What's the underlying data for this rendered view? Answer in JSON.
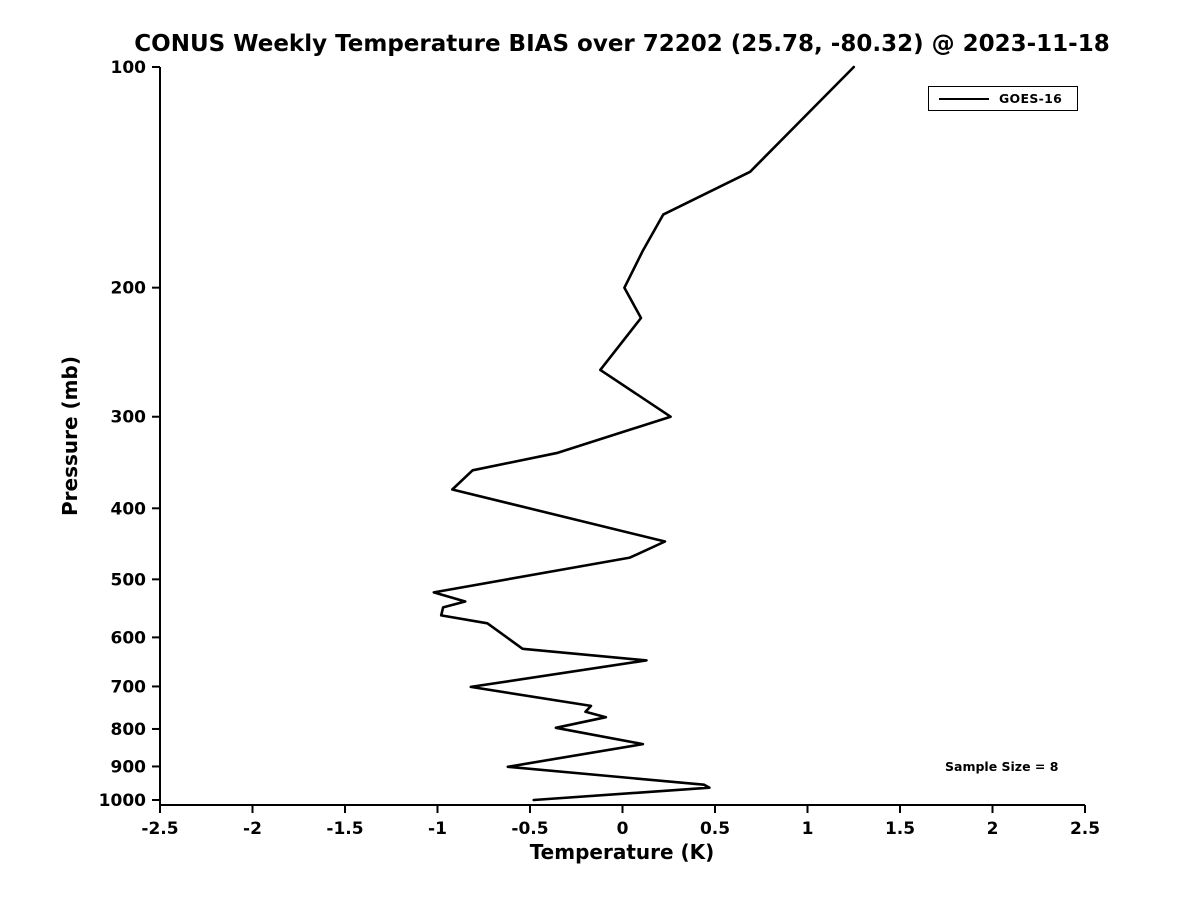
{
  "chart_data": {
    "type": "line",
    "title": "CONUS Weekly Temperature BIAS over 72202 (25.78, -80.32) @ 2023-11-18",
    "xlabel": "Temperature (K)",
    "ylabel": "Pressure (mb)",
    "xlim": [
      -2.5,
      2.5
    ],
    "ylim": [
      100,
      1000
    ],
    "y_scale": "log",
    "y_inverted": true,
    "grid": false,
    "axis_color": "#000000",
    "line_color": "#000000",
    "x_ticks": [
      -2.5,
      -2,
      -1.5,
      -1,
      -0.5,
      0,
      0.5,
      1,
      1.5,
      2,
      2.5
    ],
    "x_tick_labels": [
      "-2.5",
      "-2",
      "-1.5",
      "-1",
      "-0.5",
      "0",
      "0.5",
      "1",
      "1.5",
      "2",
      "2.5"
    ],
    "y_ticks": [
      100,
      200,
      300,
      400,
      500,
      600,
      700,
      800,
      900,
      1000
    ],
    "y_tick_labels": [
      "100",
      "200",
      "300",
      "400",
      "500",
      "600",
      "700",
      "800",
      "900",
      "1000"
    ],
    "legend": {
      "position": "upper right",
      "entries": [
        "GOES-16"
      ]
    },
    "annotation": "Sample Size = 8",
    "series": [
      {
        "name": "GOES-16",
        "points": [
          [
            100,
            1.25
          ],
          [
            139,
            0.69
          ],
          [
            159,
            0.22
          ],
          [
            178,
            0.11
          ],
          [
            200,
            0.01
          ],
          [
            220,
            0.1
          ],
          [
            259,
            -0.12
          ],
          [
            300,
            0.26
          ],
          [
            336,
            -0.35
          ],
          [
            355,
            -0.81
          ],
          [
            377,
            -0.92
          ],
          [
            444,
            0.23
          ],
          [
            467,
            0.04
          ],
          [
            521,
            -1.02
          ],
          [
            536,
            -0.85
          ],
          [
            546,
            -0.97
          ],
          [
            560,
            -0.98
          ],
          [
            574,
            -0.73
          ],
          [
            622,
            -0.54
          ],
          [
            645,
            0.13
          ],
          [
            701,
            -0.82
          ],
          [
            744,
            -0.17
          ],
          [
            758,
            -0.2
          ],
          [
            771,
            -0.09
          ],
          [
            797,
            -0.36
          ],
          [
            839,
            0.11
          ],
          [
            901,
            -0.62
          ],
          [
            953,
            0.44
          ],
          [
            962,
            0.47
          ],
          [
            1000,
            -0.48
          ]
        ]
      }
    ]
  }
}
